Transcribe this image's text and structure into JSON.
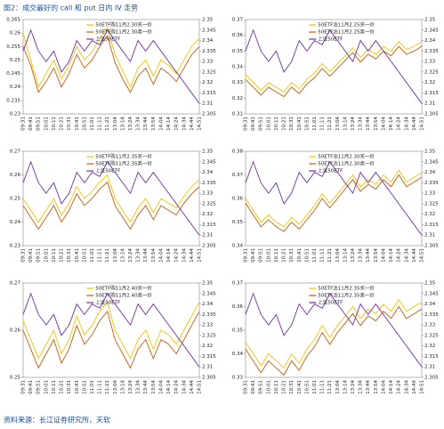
{
  "title": "图2：成交最好的 call 和 put 日内 IV 走势",
  "source": "资料来源：长江证券研究所，天软",
  "chart_data": [
    {
      "type": "line",
      "categories": [
        "09:31",
        "09:41",
        "09:51",
        "10:01",
        "10:11",
        "10:21",
        "10:31",
        "10:41",
        "10:51",
        "11:01",
        "11:11",
        "11:21",
        "13:04",
        "13:14",
        "13:24",
        "13:34",
        "13:44",
        "13:54",
        "14:04",
        "14:14",
        "14:24",
        "14:34",
        "14:44",
        "14:51"
      ],
      "ylim": [
        0.23,
        0.265
      ],
      "yticks": [
        0.23,
        0.235,
        0.24,
        0.245,
        0.25,
        0.255,
        0.26,
        0.265
      ],
      "y2lim": [
        2.305,
        2.35
      ],
      "y2ticks": [
        2.305,
        2.31,
        2.315,
        2.32,
        2.325,
        2.33,
        2.335,
        2.34,
        2.345,
        2.35
      ],
      "series": [
        {
          "name": "50ETF购11月2.30买一价",
          "color": "#f2c200",
          "values": [
            0.26,
            0.25,
            0.24,
            0.245,
            0.25,
            0.243,
            0.248,
            0.255,
            0.25,
            0.253,
            0.258,
            0.262,
            0.252,
            0.246,
            0.24,
            0.247,
            0.25,
            0.244,
            0.25,
            0.248,
            0.245,
            0.25,
            0.255,
            0.258
          ]
        },
        {
          "name": "50ETF购11月2.30卖一价",
          "color": "#c55a11",
          "values": [
            0.255,
            0.248,
            0.238,
            0.242,
            0.247,
            0.24,
            0.245,
            0.252,
            0.247,
            0.25,
            0.255,
            0.259,
            0.249,
            0.243,
            0.238,
            0.244,
            0.247,
            0.241,
            0.247,
            0.245,
            0.242,
            0.247,
            0.252,
            0.255
          ]
        },
        {
          "name": "上证50ETF",
          "color": "#7030a0",
          "axis": "y2",
          "values": [
            2.335,
            2.345,
            2.335,
            2.33,
            2.335,
            2.325,
            2.33,
            2.34,
            2.335,
            2.34,
            2.338,
            2.345,
            2.34,
            2.335,
            2.33,
            2.34,
            2.335,
            2.34,
            2.335,
            2.33,
            2.325,
            2.32,
            2.315,
            2.31
          ]
        }
      ]
    },
    {
      "type": "line",
      "categories": [
        "09:31",
        "09:41",
        "09:51",
        "10:01",
        "10:11",
        "10:21",
        "10:31",
        "10:41",
        "10:51",
        "11:01",
        "11:11",
        "11:21",
        "13:04",
        "13:14",
        "13:24",
        "13:34",
        "13:44",
        "13:54",
        "14:04",
        "14:14",
        "14:24",
        "14:34",
        "14:44",
        "14:51"
      ],
      "ylim": [
        0.31,
        0.37
      ],
      "yticks": [
        0.31,
        0.32,
        0.33,
        0.34,
        0.35,
        0.36,
        0.37
      ],
      "y2lim": [
        2.305,
        2.35
      ],
      "y2ticks": [
        2.305,
        2.31,
        2.315,
        2.32,
        2.325,
        2.33,
        2.335,
        2.34,
        2.345,
        2.35
      ],
      "series": [
        {
          "name": "50ETF沽11月2.25买一价",
          "color": "#f2c200",
          "values": [
            0.335,
            0.33,
            0.325,
            0.33,
            0.327,
            0.324,
            0.33,
            0.326,
            0.332,
            0.336,
            0.342,
            0.337,
            0.342,
            0.347,
            0.352,
            0.346,
            0.351,
            0.348,
            0.353,
            0.35,
            0.356,
            0.351,
            0.353,
            0.356
          ]
        },
        {
          "name": "50ETF沽11月2.25卖一价",
          "color": "#c55a11",
          "values": [
            0.332,
            0.327,
            0.322,
            0.327,
            0.324,
            0.321,
            0.327,
            0.323,
            0.329,
            0.333,
            0.339,
            0.334,
            0.339,
            0.344,
            0.349,
            0.343,
            0.348,
            0.345,
            0.35,
            0.347,
            0.353,
            0.348,
            0.35,
            0.353
          ]
        },
        {
          "name": "上证50ETF",
          "color": "#7030a0",
          "axis": "y2",
          "values": [
            2.335,
            2.345,
            2.335,
            2.33,
            2.335,
            2.325,
            2.33,
            2.34,
            2.335,
            2.34,
            2.338,
            2.345,
            2.34,
            2.335,
            2.33,
            2.34,
            2.335,
            2.34,
            2.335,
            2.33,
            2.325,
            2.32,
            2.315,
            2.31
          ]
        }
      ]
    },
    {
      "type": "line",
      "categories": [
        "09:31",
        "09:41",
        "09:51",
        "10:01",
        "10:11",
        "10:21",
        "10:31",
        "10:41",
        "10:51",
        "11:01",
        "11:11",
        "11:21",
        "13:04",
        "13:14",
        "13:24",
        "13:34",
        "13:44",
        "13:54",
        "14:04",
        "14:14",
        "14:24",
        "14:34",
        "14:44",
        "14:51"
      ],
      "ylim": [
        0.23,
        0.27
      ],
      "yticks": [
        0.23,
        0.24,
        0.25,
        0.26,
        0.27
      ],
      "y2lim": [
        2.305,
        2.35
      ],
      "y2ticks": [
        2.305,
        2.31,
        2.315,
        2.32,
        2.325,
        2.33,
        2.335,
        2.34,
        2.345,
        2.35
      ],
      "series": [
        {
          "name": "50ETF购11月2.35买一价",
          "color": "#f2c200",
          "values": [
            0.25,
            0.245,
            0.24,
            0.245,
            0.25,
            0.243,
            0.248,
            0.255,
            0.25,
            0.253,
            0.257,
            0.26,
            0.25,
            0.245,
            0.24,
            0.246,
            0.25,
            0.244,
            0.25,
            0.248,
            0.246,
            0.251,
            0.255,
            0.258
          ]
        },
        {
          "name": "50ETF购11月2.35卖一价",
          "color": "#c55a11",
          "values": [
            0.247,
            0.242,
            0.237,
            0.242,
            0.247,
            0.24,
            0.245,
            0.252,
            0.247,
            0.25,
            0.254,
            0.257,
            0.247,
            0.242,
            0.237,
            0.243,
            0.247,
            0.241,
            0.247,
            0.245,
            0.243,
            0.248,
            0.252,
            0.255
          ]
        },
        {
          "name": "上证50ETF",
          "color": "#7030a0",
          "axis": "y2",
          "values": [
            2.335,
            2.345,
            2.335,
            2.33,
            2.335,
            2.325,
            2.33,
            2.34,
            2.335,
            2.34,
            2.338,
            2.345,
            2.34,
            2.335,
            2.33,
            2.34,
            2.335,
            2.34,
            2.335,
            2.33,
            2.325,
            2.32,
            2.315,
            2.31
          ]
        }
      ]
    },
    {
      "type": "line",
      "categories": [
        "09:31",
        "09:41",
        "09:51",
        "10:01",
        "10:11",
        "10:21",
        "10:31",
        "10:41",
        "10:51",
        "11:01",
        "11:11",
        "11:21",
        "13:04",
        "13:14",
        "13:24",
        "13:34",
        "13:44",
        "13:54",
        "14:04",
        "14:14",
        "14:24",
        "14:34",
        "14:44",
        "14:51"
      ],
      "ylim": [
        0.34,
        0.38
      ],
      "yticks": [
        0.34,
        0.35,
        0.36,
        0.37,
        0.38
      ],
      "y2lim": [
        2.305,
        2.35
      ],
      "y2ticks": [
        2.305,
        2.31,
        2.315,
        2.32,
        2.325,
        2.33,
        2.335,
        2.34,
        2.345,
        2.35
      ],
      "series": [
        {
          "name": "50ETF沽11月2.30买一价",
          "color": "#f2c200",
          "values": [
            0.36,
            0.355,
            0.35,
            0.353,
            0.35,
            0.348,
            0.352,
            0.349,
            0.353,
            0.357,
            0.362,
            0.358,
            0.362,
            0.366,
            0.37,
            0.365,
            0.368,
            0.366,
            0.37,
            0.367,
            0.372,
            0.367,
            0.369,
            0.371
          ]
        },
        {
          "name": "50ETF沽11月2.30卖一价",
          "color": "#c55a11",
          "values": [
            0.358,
            0.353,
            0.348,
            0.351,
            0.348,
            0.346,
            0.35,
            0.347,
            0.351,
            0.355,
            0.36,
            0.356,
            0.36,
            0.364,
            0.368,
            0.363,
            0.366,
            0.364,
            0.368,
            0.365,
            0.37,
            0.365,
            0.367,
            0.369
          ]
        },
        {
          "name": "上证50ETF",
          "color": "#7030a0",
          "axis": "y2",
          "values": [
            2.335,
            2.345,
            2.335,
            2.33,
            2.335,
            2.325,
            2.33,
            2.34,
            2.335,
            2.34,
            2.338,
            2.345,
            2.34,
            2.335,
            2.33,
            2.34,
            2.335,
            2.34,
            2.335,
            2.33,
            2.325,
            2.32,
            2.315,
            2.31
          ]
        }
      ]
    },
    {
      "type": "line",
      "categories": [
        "09:31",
        "09:41",
        "09:51",
        "10:01",
        "10:11",
        "10:21",
        "10:31",
        "10:41",
        "10:51",
        "11:01",
        "11:11",
        "11:21",
        "13:04",
        "13:14",
        "13:24",
        "13:34",
        "13:44",
        "13:54",
        "14:04",
        "14:14",
        "14:24",
        "14:34",
        "14:44",
        "14:51"
      ],
      "ylim": [
        0.25,
        0.27
      ],
      "yticks": [
        0.25,
        0.26,
        0.27
      ],
      "y2lim": [
        2.305,
        2.35
      ],
      "y2ticks": [
        2.305,
        2.31,
        2.315,
        2.32,
        2.325,
        2.33,
        2.335,
        2.34,
        2.345,
        2.35
      ],
      "series": [
        {
          "name": "50ETF购11月2.40买一价",
          "color": "#f2c200",
          "values": [
            0.262,
            0.258,
            0.254,
            0.257,
            0.26,
            0.255,
            0.258,
            0.263,
            0.259,
            0.261,
            0.264,
            0.266,
            0.26,
            0.257,
            0.254,
            0.258,
            0.26,
            0.256,
            0.26,
            0.259,
            0.257,
            0.26,
            0.263,
            0.266
          ]
        },
        {
          "name": "50ETF购11月2.40卖一价",
          "color": "#c55a11",
          "values": [
            0.26,
            0.256,
            0.252,
            0.255,
            0.258,
            0.253,
            0.256,
            0.261,
            0.257,
            0.259,
            0.262,
            0.264,
            0.258,
            0.255,
            0.252,
            0.256,
            0.258,
            0.254,
            0.258,
            0.257,
            0.255,
            0.258,
            0.261,
            0.264
          ]
        },
        {
          "name": "上证50ETF",
          "color": "#7030a0",
          "axis": "y2",
          "values": [
            2.335,
            2.345,
            2.335,
            2.33,
            2.335,
            2.325,
            2.33,
            2.34,
            2.335,
            2.34,
            2.338,
            2.345,
            2.34,
            2.335,
            2.33,
            2.34,
            2.335,
            2.34,
            2.335,
            2.33,
            2.325,
            2.32,
            2.315,
            2.31
          ]
        }
      ]
    },
    {
      "type": "line",
      "categories": [
        "09:31",
        "09:41",
        "09:51",
        "10:01",
        "10:11",
        "10:21",
        "10:31",
        "10:41",
        "10:51",
        "11:01",
        "11:11",
        "11:21",
        "13:04",
        "13:14",
        "13:24",
        "13:34",
        "13:44",
        "13:54",
        "14:04",
        "14:14",
        "14:24",
        "14:34",
        "14:44",
        "14:51"
      ],
      "ylim": [
        0.33,
        0.37
      ],
      "yticks": [
        0.33,
        0.34,
        0.35,
        0.36,
        0.37
      ],
      "y2lim": [
        2.305,
        2.35
      ],
      "y2ticks": [
        2.305,
        2.31,
        2.315,
        2.32,
        2.325,
        2.33,
        2.335,
        2.34,
        2.345,
        2.35
      ],
      "series": [
        {
          "name": "50ETF沽11月2.35买一价",
          "color": "#f2c200",
          "values": [
            0.345,
            0.34,
            0.335,
            0.34,
            0.337,
            0.334,
            0.34,
            0.336,
            0.342,
            0.346,
            0.352,
            0.347,
            0.352,
            0.356,
            0.36,
            0.355,
            0.359,
            0.357,
            0.361,
            0.358,
            0.363,
            0.358,
            0.36,
            0.362
          ]
        },
        {
          "name": "50ETF沽11月2.35卖一价",
          "color": "#c55a11",
          "values": [
            0.342,
            0.337,
            0.332,
            0.337,
            0.334,
            0.331,
            0.337,
            0.333,
            0.339,
            0.343,
            0.349,
            0.344,
            0.349,
            0.353,
            0.357,
            0.352,
            0.356,
            0.354,
            0.358,
            0.355,
            0.36,
            0.355,
            0.357,
            0.359
          ]
        },
        {
          "name": "上证50ETF",
          "color": "#7030a0",
          "axis": "y2",
          "values": [
            2.335,
            2.345,
            2.335,
            2.33,
            2.335,
            2.325,
            2.33,
            2.34,
            2.335,
            2.34,
            2.338,
            2.345,
            2.34,
            2.335,
            2.33,
            2.34,
            2.335,
            2.34,
            2.335,
            2.33,
            2.325,
            2.32,
            2.315,
            2.31
          ]
        }
      ]
    }
  ]
}
